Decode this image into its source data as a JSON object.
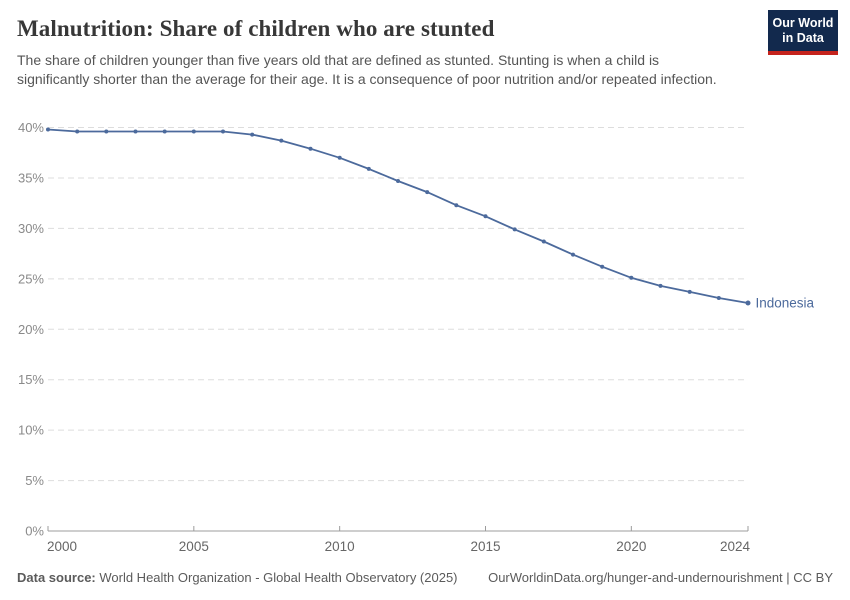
{
  "header": {
    "title": "Malnutrition: Share of children who are stunted",
    "subtitle": "The share of children younger than five years old that are defined as stunted. Stunting is when a child is significantly shorter than the average for their age. It is a consequence of poor nutrition and/or repeated infection.",
    "logo": {
      "line1": "Our World",
      "line2": "in Data"
    }
  },
  "chart_data": {
    "type": "line",
    "title": "Malnutrition: Share of children who are stunted",
    "x": [
      2000,
      2001,
      2002,
      2003,
      2004,
      2005,
      2006,
      2007,
      2008,
      2009,
      2010,
      2011,
      2012,
      2013,
      2014,
      2015,
      2016,
      2017,
      2018,
      2019,
      2020,
      2021,
      2022,
      2023,
      2024
    ],
    "series": [
      {
        "name": "Indonesia",
        "color": "#4C6A9C",
        "values": [
          39.8,
          39.6,
          39.6,
          39.6,
          39.6,
          39.6,
          39.6,
          39.3,
          38.7,
          37.9,
          37.0,
          35.9,
          34.7,
          33.6,
          32.3,
          31.2,
          29.9,
          28.7,
          27.4,
          26.2,
          25.1,
          24.3,
          23.7,
          23.1,
          22.6
        ]
      }
    ],
    "xlabel": "",
    "ylabel": "",
    "xlim": [
      2000,
      2024
    ],
    "ylim": [
      0,
      40
    ],
    "yticks": [
      0,
      5,
      10,
      15,
      20,
      25,
      30,
      35,
      40
    ],
    "ytick_suffix": "%",
    "xticks": [
      2000,
      2005,
      2010,
      2015,
      2020,
      2024
    ],
    "grid": "horizontal-dashed",
    "legend": "line-end-label",
    "markers": "points-on-line"
  },
  "footer": {
    "datasource_label": "Data source:",
    "datasource_text": " World Health Organization - Global Health Observatory (2025)",
    "url_text": "OurWorldinData.org/hunger-and-undernourishment | CC BY"
  },
  "colors": {
    "line": "#4C6A9C",
    "title_text": "#373737",
    "subtitle_text": "#555555",
    "axis_y_text": "#8A8A8A",
    "axis_x_text": "#666666",
    "axis_line": "#9C9C9C",
    "grid": "#DDDDDD",
    "logo_bg": "#12294D",
    "logo_accent": "#C5231D",
    "background": "#FFFFFF"
  }
}
